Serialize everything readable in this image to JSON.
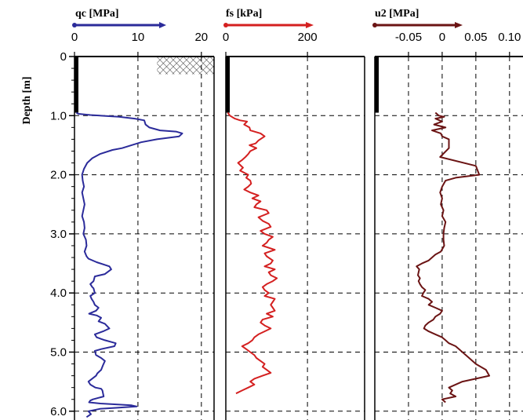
{
  "colors": {
    "qc": "#2b2b9a",
    "fs": "#d42020",
    "u2": "#6b1414",
    "axis": "#000000",
    "grid": "#000000"
  },
  "y_axis": {
    "label": "Depth [m]",
    "ticks": [
      "0",
      "1.0",
      "2.0",
      "3.0",
      "4.0",
      "5.0",
      "6.0"
    ],
    "tick_values": [
      0,
      1,
      2,
      3,
      4,
      5,
      6
    ],
    "range": [
      0,
      6.1
    ]
  },
  "chart_data": [
    {
      "type": "line",
      "title": "qc [MPa]",
      "xlabel": "qc [MPa]",
      "ylabel": "Depth [m]",
      "xlim": [
        0,
        22
      ],
      "ylim": [
        0,
        6.1
      ],
      "x_ticks": [
        "0",
        "10",
        "20"
      ],
      "x_tick_values": [
        0,
        10,
        20
      ],
      "grid": true,
      "legend_swatch": "line-with-arrow",
      "predrill_depth": [
        0,
        0.95
      ],
      "hatch_zone": {
        "x": [
          13,
          22
        ],
        "depth": [
          0,
          0.3
        ]
      },
      "series": [
        {
          "x": [
            0.3,
            0.6,
            2.5,
            7,
            9.5,
            11,
            11.2,
            11.8,
            13.5,
            16,
            17,
            16.5,
            13,
            10.5,
            9,
            7.5,
            6,
            4,
            2.8,
            2,
            1.5,
            1.2,
            1.3,
            1.5,
            1.2,
            1.4,
            1.6,
            1.4,
            1.2,
            1.5,
            1.6,
            1.4,
            1.8,
            1.9,
            1.6,
            1.9,
            2.2,
            3.5,
            5.5,
            5.8,
            4.8,
            3.2,
            3,
            2.5,
            2.8,
            3,
            3.2,
            2.5,
            2.7,
            3,
            3.2,
            3.8,
            3.4,
            2.3,
            3.5,
            4.2,
            3.8,
            4.8,
            5.5,
            4.5,
            3.2,
            3.5,
            4.8,
            6.5,
            6.3,
            4.2,
            3.2,
            3.4,
            4.2,
            4.8,
            4.5,
            4.2,
            3.6,
            3.4,
            2.2,
            2.5,
            3.3,
            4.2,
            4.4,
            4.5,
            4.6,
            2.9,
            2.5,
            2.3,
            4.1,
            9,
            9.8,
            7,
            4,
            2.2,
            2.6,
            1.9
          ],
          "depth": [
            0.95,
            0.97,
            0.99,
            1.02,
            1.05,
            1.08,
            1.15,
            1.2,
            1.25,
            1.27,
            1.3,
            1.35,
            1.4,
            1.45,
            1.5,
            1.55,
            1.58,
            1.65,
            1.72,
            1.8,
            1.9,
            2.0,
            2.1,
            2.2,
            2.3,
            2.4,
            2.5,
            2.6,
            2.7,
            2.8,
            2.9,
            3.0,
            3.1,
            3.2,
            3.3,
            3.38,
            3.42,
            3.48,
            3.55,
            3.6,
            3.68,
            3.72,
            3.8,
            3.85,
            3.9,
            3.92,
            4.0,
            4.05,
            4.1,
            4.15,
            4.2,
            4.25,
            4.3,
            4.35,
            4.38,
            4.42,
            4.48,
            4.52,
            4.6,
            4.65,
            4.7,
            4.75,
            4.8,
            4.85,
            4.9,
            4.95,
            4.98,
            5.05,
            5.1,
            5.15,
            5.22,
            5.3,
            5.36,
            5.4,
            5.5,
            5.55,
            5.6,
            5.62,
            5.65,
            5.7,
            5.75,
            5.8,
            5.82,
            5.85,
            5.87,
            5.9,
            5.92,
            5.94,
            5.96,
            6.0,
            6.05,
            6.1
          ]
        }
      ]
    },
    {
      "type": "line",
      "title": "fs [kPa]",
      "xlabel": "fs [kPa]",
      "ylabel": "Depth [m]",
      "xlim": [
        0,
        340
      ],
      "ylim": [
        0,
        6.1
      ],
      "x_ticks": [
        "0",
        "200"
      ],
      "x_tick_values": [
        0,
        200
      ],
      "grid": true,
      "legend_swatch": "line-with-arrow",
      "predrill_depth": [
        0,
        0.95
      ],
      "series": [
        {
          "x": [
            5,
            10,
            22,
            35,
            52,
            45,
            58,
            60,
            85,
            95,
            80,
            73,
            58,
            75,
            60,
            55,
            48,
            40,
            30,
            42,
            35,
            55,
            50,
            60,
            62,
            55,
            45,
            60,
            80,
            65,
            85,
            75,
            70,
            100,
            105,
            80,
            90,
            105,
            110,
            85,
            95,
            115,
            105,
            100,
            90,
            120,
            95,
            100,
            115,
            110,
            95,
            120,
            105,
            110,
            125,
            115,
            100,
            90,
            95,
            105,
            95,
            120,
            115,
            110,
            115,
            120,
            100,
            115,
            90,
            85,
            95,
            110,
            95,
            80,
            70,
            65,
            55,
            40,
            50,
            60,
            70,
            75,
            85,
            95,
            90,
            100,
            110,
            90,
            70,
            60,
            70,
            55,
            40,
            25
          ],
          "depth": [
            0.95,
            1.0,
            1.05,
            1.08,
            1.1,
            1.15,
            1.2,
            1.25,
            1.3,
            1.35,
            1.42,
            1.47,
            1.5,
            1.55,
            1.6,
            1.65,
            1.7,
            1.75,
            1.8,
            1.88,
            1.93,
            2.0,
            2.05,
            2.1,
            2.15,
            2.2,
            2.25,
            2.3,
            2.35,
            2.4,
            2.45,
            2.5,
            2.55,
            2.6,
            2.65,
            2.72,
            2.78,
            2.83,
            2.88,
            2.95,
            3.0,
            3.05,
            3.1,
            3.15,
            3.2,
            3.27,
            3.33,
            3.38,
            3.45,
            3.5,
            3.55,
            3.6,
            3.65,
            3.7,
            3.75,
            3.8,
            3.85,
            3.9,
            3.95,
            4.0,
            4.05,
            4.1,
            4.15,
            4.2,
            4.25,
            4.3,
            4.35,
            4.4,
            4.45,
            4.5,
            4.55,
            4.6,
            4.65,
            4.7,
            4.75,
            4.8,
            4.85,
            4.9,
            4.95,
            5.0,
            5.05,
            5.1,
            5.15,
            5.2,
            5.25,
            5.3,
            5.35,
            5.4,
            5.45,
            5.5,
            5.55,
            5.6,
            5.65,
            5.7
          ]
        }
      ]
    },
    {
      "type": "line",
      "title": "u2 [MPa]",
      "xlabel": "u2 [MPa]",
      "ylabel": "Depth [m]",
      "xlim": [
        -0.1,
        0.12
      ],
      "ylim": [
        0,
        6.1
      ],
      "x_ticks": [
        "-0.05",
        "0",
        "0.05",
        "0.10"
      ],
      "x_tick_values": [
        -0.05,
        0,
        0.05,
        0.1
      ],
      "grid": true,
      "legend_swatch": "line-with-arrow",
      "predrill_depth": [
        0,
        0.95
      ],
      "series": [
        {
          "x": [
            -0.01,
            -0.005,
            0.003,
            -0.01,
            0.0,
            -0.012,
            0.005,
            -0.015,
            -0.002,
            0.0,
            0.01,
            0.01,
            -0.003,
            0.05,
            0.055,
            0.02,
            0.005,
            0.0,
            -0.003,
            0.0,
            -0.002,
            0.002,
            0.0,
            0.005,
            0.003,
            0.002,
            0.002,
            0.003,
            -0.002,
            -0.01,
            -0.015,
            -0.02,
            -0.03,
            -0.038,
            -0.034,
            -0.035,
            -0.036,
            -0.033,
            -0.035,
            -0.033,
            -0.03,
            -0.025,
            -0.028,
            -0.03,
            -0.02,
            -0.015,
            -0.02,
            -0.01,
            0.0,
            -0.003,
            -0.01,
            -0.013,
            -0.02,
            -0.025,
            -0.027,
            -0.02,
            -0.01,
            0.0,
            0.005,
            0.01,
            0.02,
            0.03,
            0.04,
            0.05,
            0.065,
            0.07,
            0.05,
            0.03,
            0.01,
            0.015,
            0.012,
            0.02,
            0.0,
            0.005
          ],
          "depth": [
            0.95,
            1.0,
            1.02,
            1.05,
            1.1,
            1.15,
            1.2,
            1.25,
            1.3,
            1.35,
            1.4,
            1.55,
            1.7,
            1.85,
            2.0,
            2.05,
            2.1,
            2.2,
            2.3,
            2.4,
            2.5,
            2.6,
            2.7,
            2.8,
            2.9,
            3.0,
            3.1,
            3.2,
            3.3,
            3.35,
            3.4,
            3.45,
            3.5,
            3.55,
            3.6,
            3.65,
            3.7,
            3.75,
            3.8,
            3.85,
            3.9,
            3.95,
            4.0,
            4.05,
            4.1,
            4.15,
            4.2,
            4.25,
            4.3,
            4.35,
            4.4,
            4.45,
            4.5,
            4.55,
            4.6,
            4.65,
            4.7,
            4.75,
            4.8,
            4.85,
            4.9,
            5.0,
            5.1,
            5.2,
            5.3,
            5.4,
            5.45,
            5.5,
            5.6,
            5.65,
            5.7,
            5.75,
            5.8,
            5.85
          ]
        }
      ]
    }
  ]
}
